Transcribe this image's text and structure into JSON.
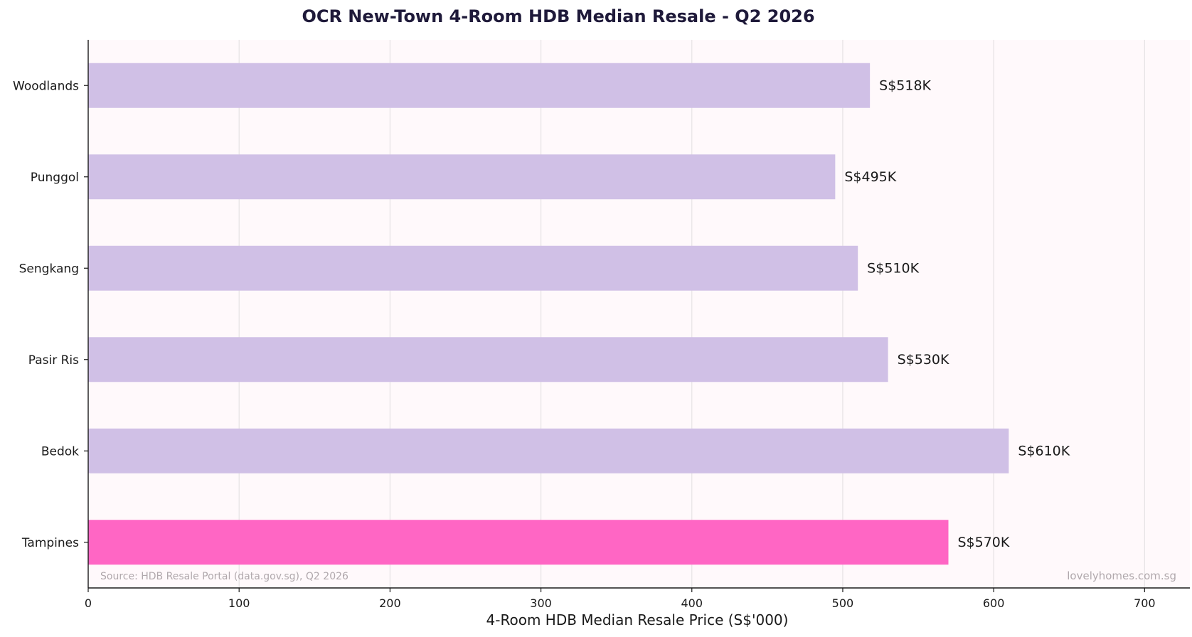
{
  "chart_data": {
    "type": "bar",
    "orientation": "horizontal",
    "title": "OCR New-Town 4-Room HDB Median Resale - Q2 2026",
    "xlabel": "4-Room HDB Median Resale Price (S$'000)",
    "ylabel": "",
    "categories": [
      "Woodlands",
      "Punggol",
      "Sengkang",
      "Pasir Ris",
      "Bedok",
      "Tampines"
    ],
    "values": [
      518,
      495,
      510,
      530,
      610,
      570
    ],
    "value_labels": [
      "S$518K",
      "S$495K",
      "S$510K",
      "S$530K",
      "S$610K",
      "S$570K"
    ],
    "highlight": [
      "Tampines"
    ],
    "xlim": [
      0,
      730
    ],
    "xticks": [
      0,
      100,
      200,
      300,
      400,
      500,
      600,
      700
    ],
    "grid": "vertical",
    "legend": "none",
    "source_note": "Source: HDB Resale Portal (data.gov.sg), Q2 2026",
    "watermark": "lovelyhomes.com.sg",
    "colors": {
      "bar": "#d0c0e6",
      "highlight": "#ff66c4",
      "plot_background": "#fff9fb",
      "grid": "#e6e2e4",
      "axis": "#1a1a1a",
      "title": "#1f1a3a",
      "text": "#1a1a1a",
      "footnote": "#b0a8ac"
    }
  }
}
